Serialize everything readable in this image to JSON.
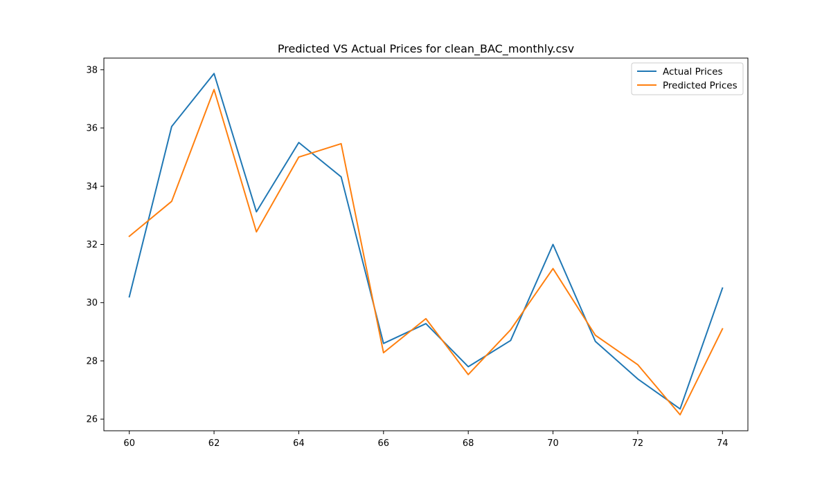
{
  "chart_data": {
    "type": "line",
    "title": "Predicted VS Actual Prices for clean_BAC_monthly.csv",
    "xlabel": "",
    "ylabel": "",
    "x": [
      60,
      61,
      62,
      63,
      64,
      65,
      66,
      67,
      68,
      69,
      70,
      71,
      72,
      73,
      74
    ],
    "xlim": [
      59.4,
      74.6
    ],
    "ylim": [
      25.6,
      38.4
    ],
    "x_ticks": [
      60,
      62,
      64,
      66,
      68,
      70,
      72,
      74
    ],
    "y_ticks": [
      26,
      28,
      30,
      32,
      34,
      36,
      38
    ],
    "x_tick_labels": [
      "60",
      "62",
      "64",
      "66",
      "68",
      "70",
      "72",
      "74"
    ],
    "y_tick_labels": [
      "26",
      "28",
      "30",
      "32",
      "34",
      "36",
      "38"
    ],
    "grid": false,
    "legend_position": "upper right",
    "series": [
      {
        "name": "Actual Prices",
        "color": "#1f77b4",
        "values": [
          30.2,
          36.05,
          37.87,
          33.12,
          35.5,
          34.32,
          28.6,
          29.28,
          27.8,
          28.7,
          32.0,
          28.67,
          27.38,
          26.35,
          30.5
        ]
      },
      {
        "name": "Predicted Prices",
        "color": "#ff7f0e",
        "values": [
          32.28,
          33.48,
          37.32,
          32.43,
          35.0,
          35.46,
          28.28,
          29.45,
          27.53,
          29.07,
          31.17,
          28.88,
          27.87,
          26.15,
          29.1
        ]
      }
    ]
  }
}
